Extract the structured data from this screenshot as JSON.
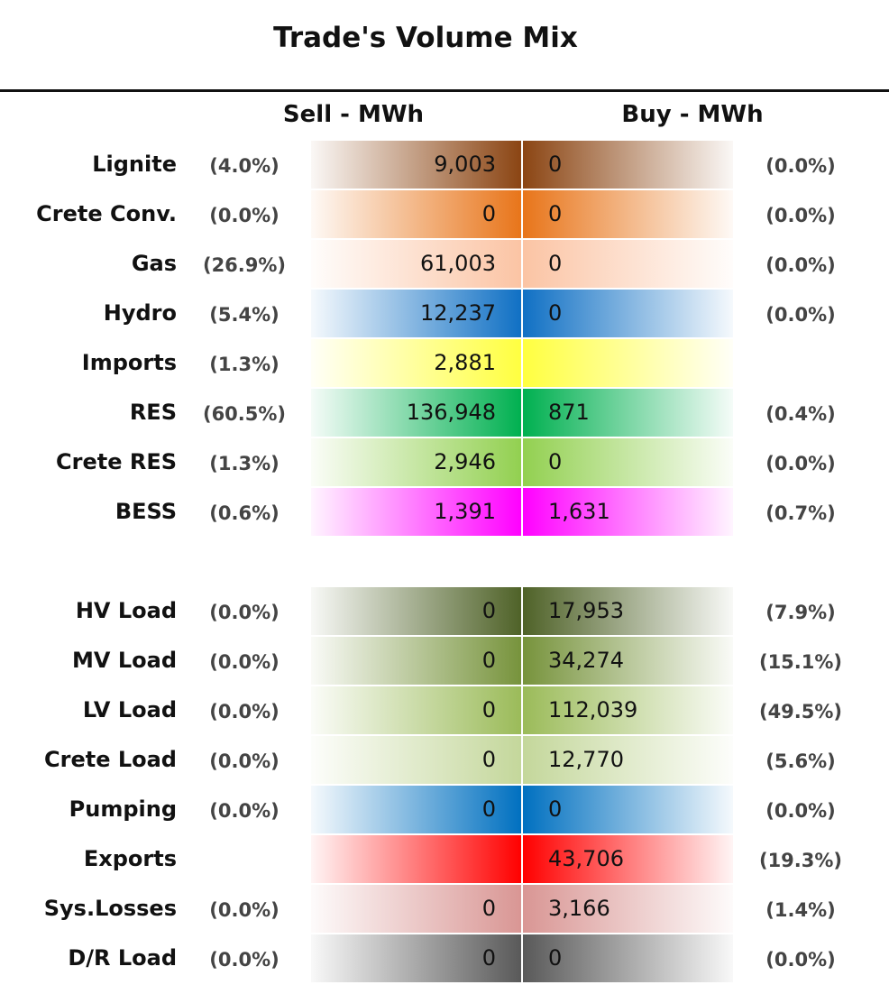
{
  "chart_data": {
    "type": "table",
    "title": "Trade's Volume Mix",
    "columns": [
      "Sell - MWh",
      "Buy - MWh"
    ],
    "rows": [
      {
        "key": "lignite",
        "label": "Lignite",
        "sell": "9,003",
        "sell_pct": "(4.0%)",
        "buy": "0",
        "buy_pct": "(0.0%)",
        "color": "#8B4513"
      },
      {
        "key": "crete-conv",
        "label": "Crete Conv.",
        "sell": "0",
        "sell_pct": "(0.0%)",
        "buy": "0",
        "buy_pct": "(0.0%)",
        "color": "#E8751A"
      },
      {
        "key": "gas",
        "label": "Gas",
        "sell": "61,003",
        "sell_pct": "(26.9%)",
        "buy": "0",
        "buy_pct": "(0.0%)",
        "color": "#FBC4A4"
      },
      {
        "key": "hydro",
        "label": "Hydro",
        "sell": "12,237",
        "sell_pct": "(5.4%)",
        "buy": "0",
        "buy_pct": "(0.0%)",
        "color": "#1070C4"
      },
      {
        "key": "imports",
        "label": "Imports",
        "sell": "2,881",
        "sell_pct": "(1.3%)",
        "buy": "",
        "buy_pct": "",
        "color": "#FFFF40"
      },
      {
        "key": "res",
        "label": "RES",
        "sell": "136,948",
        "sell_pct": "(60.5%)",
        "buy": "871",
        "buy_pct": "(0.4%)",
        "color": "#00B050"
      },
      {
        "key": "crete-res",
        "label": "Crete RES",
        "sell": "2,946",
        "sell_pct": "(1.3%)",
        "buy": "0",
        "buy_pct": "(0.0%)",
        "color": "#92D050"
      },
      {
        "key": "bess",
        "label": "BESS",
        "sell": "1,391",
        "sell_pct": "(0.6%)",
        "buy": "1,631",
        "buy_pct": "(0.7%)",
        "color": "#FF00FF"
      },
      {
        "key": "hv-load",
        "label": "HV Load",
        "sell": "0",
        "sell_pct": "(0.0%)",
        "buy": "17,953",
        "buy_pct": "(7.9%)",
        "color": "#4F6228"
      },
      {
        "key": "mv-load",
        "label": "MV Load",
        "sell": "0",
        "sell_pct": "(0.0%)",
        "buy": "34,274",
        "buy_pct": "(15.1%)",
        "color": "#77933C"
      },
      {
        "key": "lv-load",
        "label": "LV Load",
        "sell": "0",
        "sell_pct": "(0.0%)",
        "buy": "112,039",
        "buy_pct": "(49.5%)",
        "color": "#9BBB59"
      },
      {
        "key": "crete-load",
        "label": "Crete Load",
        "sell": "0",
        "sell_pct": "(0.0%)",
        "buy": "12,770",
        "buy_pct": "(5.6%)",
        "color": "#C4D79B"
      },
      {
        "key": "pumping",
        "label": "Pumping",
        "sell": "0",
        "sell_pct": "(0.0%)",
        "buy": "0",
        "buy_pct": "(0.0%)",
        "color": "#0070C0"
      },
      {
        "key": "exports",
        "label": "Exports",
        "sell": "",
        "sell_pct": "",
        "buy": "43,706",
        "buy_pct": "(19.3%)",
        "color": "#FF0000"
      },
      {
        "key": "sys-losses",
        "label": "Sys.Losses",
        "sell": "0",
        "sell_pct": "(0.0%)",
        "buy": "3,166",
        "buy_pct": "(1.4%)",
        "color": "#D99694"
      },
      {
        "key": "dr-load",
        "label": "D/R Load",
        "sell": "0",
        "sell_pct": "(0.0%)",
        "buy": "0",
        "buy_pct": "(0.0%)",
        "color": "#595959"
      }
    ]
  }
}
